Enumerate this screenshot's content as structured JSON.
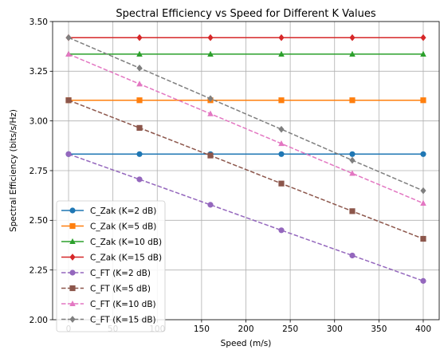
{
  "chart_data": {
    "type": "line",
    "title": "Spectral Efficiency vs Speed for Different K Values",
    "xlabel": "Speed (m/s)",
    "ylabel": "Spectral Efficiency (bits/s/Hz)",
    "xlim": [
      -18,
      418
    ],
    "ylim": [
      2.0,
      3.5
    ],
    "x_ticks": [
      0,
      50,
      100,
      150,
      200,
      250,
      300,
      350,
      400
    ],
    "y_ticks": [
      2.0,
      2.25,
      2.5,
      2.75,
      3.0,
      3.25,
      3.5
    ],
    "grid": true,
    "legend_position": "lower-left",
    "x": [
      0,
      80,
      160,
      240,
      320,
      400
    ],
    "series": [
      {
        "name": "C_Zak (K=2 dB)",
        "color": "#1f77b4",
        "marker": "circle",
        "dash": "solid",
        "values": [
          2.833,
          2.833,
          2.833,
          2.833,
          2.833,
          2.833
        ]
      },
      {
        "name": "C_Zak (K=5 dB)",
        "color": "#ff7f0e",
        "marker": "square",
        "dash": "solid",
        "values": [
          3.104,
          3.104,
          3.104,
          3.104,
          3.104,
          3.104
        ]
      },
      {
        "name": "C_Zak (K=10 dB)",
        "color": "#2ca02c",
        "marker": "triangle",
        "dash": "solid",
        "values": [
          3.336,
          3.336,
          3.336,
          3.336,
          3.336,
          3.336
        ]
      },
      {
        "name": "C_Zak (K=15 dB)",
        "color": "#d62728",
        "marker": "diamond",
        "dash": "solid",
        "values": [
          3.419,
          3.419,
          3.419,
          3.419,
          3.419,
          3.419
        ]
      },
      {
        "name": "C_FT (K=2 dB)",
        "color": "#9467bd",
        "marker": "circle",
        "dash": "dashed",
        "values": [
          2.833,
          2.706,
          2.578,
          2.45,
          2.323,
          2.195
        ]
      },
      {
        "name": "C_FT (K=5 dB)",
        "color": "#8c564b",
        "marker": "square",
        "dash": "dashed",
        "values": [
          3.104,
          2.965,
          2.826,
          2.685,
          2.546,
          2.407
        ]
      },
      {
        "name": "C_FT (K=10 dB)",
        "color": "#e377c2",
        "marker": "triangle",
        "dash": "dashed",
        "values": [
          3.336,
          3.186,
          3.036,
          2.886,
          2.736,
          2.586
        ]
      },
      {
        "name": "C_FT (K=15 dB)",
        "color": "#7f7f7f",
        "marker": "diamond",
        "dash": "dashed",
        "values": [
          3.419,
          3.266,
          3.112,
          2.958,
          2.802,
          2.649
        ]
      }
    ]
  }
}
